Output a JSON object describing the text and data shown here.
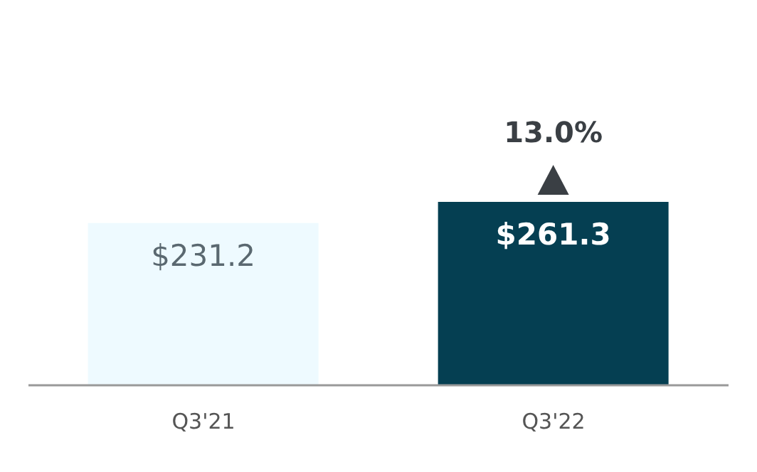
{
  "chart_data": {
    "type": "bar",
    "categories": [
      "Q3'21",
      "Q3'22"
    ],
    "values": [
      231.2,
      261.3
    ],
    "colors": [
      "#eefaff",
      "#053f52"
    ],
    "value_labels": [
      "$231.2",
      "$261.3"
    ],
    "annotations": [
      {
        "text": "13.0%",
        "x": "Q3'22",
        "y": 261.3
      }
    ]
  }
}
